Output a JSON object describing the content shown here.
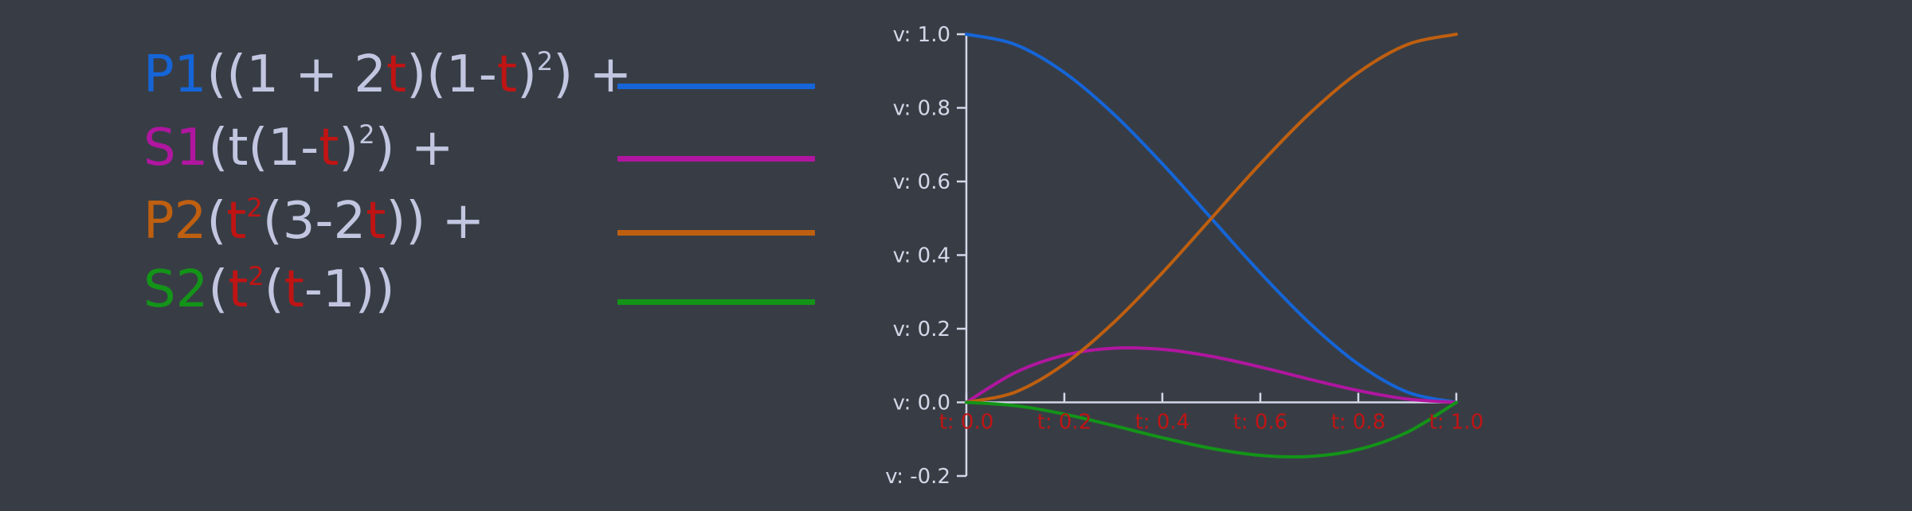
{
  "legend": {
    "p1": {
      "name": "P1",
      "parts": [
        "((1 + 2",
        "t",
        ")(1-",
        "t",
        ")",
        "2",
        ") +"
      ]
    },
    "s1": {
      "name": "S1",
      "parts": [
        "(t(1-",
        "t",
        ")",
        "2",
        ") +"
      ]
    },
    "p2": {
      "name": "P2",
      "parts": [
        "(",
        "t",
        "2",
        "(3-2",
        "t",
        ")) +"
      ]
    },
    "s2": {
      "name": "S2",
      "parts": [
        "(",
        "t",
        "2",
        "(",
        "t",
        "-1))"
      ]
    }
  },
  "colors": {
    "p1": "#1565d8",
    "s1": "#b0169f",
    "p2": "#bf5f10",
    "s2": "#139418",
    "t_var": "#c01414",
    "text": "#c2c6e0",
    "axis": "#d4d7e8",
    "background": "#383d45"
  },
  "chart_data": {
    "type": "line",
    "xlim": [
      0.0,
      1.0
    ],
    "ylim": [
      -0.2,
      1.0
    ],
    "x_ticks": [
      "t: 0.0",
      "t: 0.2",
      "t: 0.4",
      "t: 0.6",
      "t: 0.8",
      "t: 1.0"
    ],
    "y_ticks": [
      "v: 1.0",
      "v: 0.8",
      "v: 0.6",
      "v: 0.4",
      "v: 0.2",
      "v: 0.0",
      "v: -0.2"
    ],
    "x": [
      0.0,
      0.1,
      0.2,
      0.3,
      0.4,
      0.5,
      0.6,
      0.7,
      0.8,
      0.9,
      1.0
    ],
    "series": [
      {
        "key": "p1",
        "values": [
          1.0,
          0.972,
          0.896,
          0.784,
          0.648,
          0.5,
          0.352,
          0.216,
          0.104,
          0.028,
          0.0
        ]
      },
      {
        "key": "s1",
        "values": [
          0.0,
          0.081,
          0.128,
          0.147,
          0.144,
          0.125,
          0.096,
          0.063,
          0.032,
          0.009,
          0.0
        ]
      },
      {
        "key": "p2",
        "values": [
          0.0,
          0.028,
          0.104,
          0.216,
          0.352,
          0.5,
          0.648,
          0.784,
          0.896,
          0.972,
          1.0
        ]
      },
      {
        "key": "s2",
        "values": [
          0.0,
          -0.009,
          -0.032,
          -0.063,
          -0.096,
          -0.125,
          -0.144,
          -0.147,
          -0.128,
          -0.081,
          0.0
        ]
      }
    ],
    "grid": false,
    "legend_placement": "left"
  }
}
